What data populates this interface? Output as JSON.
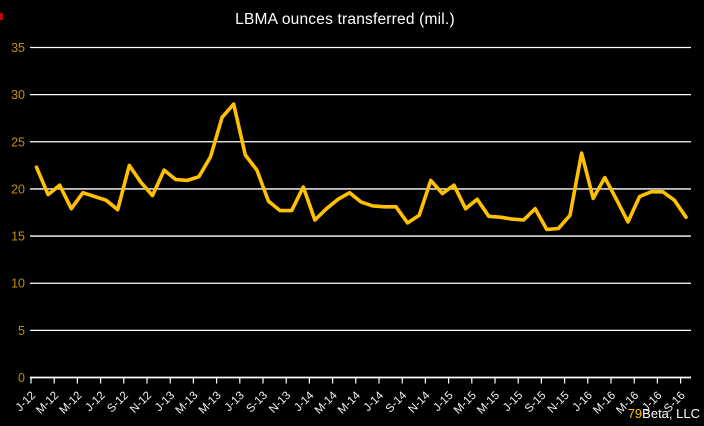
{
  "title": "LBMA ounces transferred (mil.)",
  "watermark": {
    "prefix": "79",
    "suffix": "Beta, LLC"
  },
  "colors": {
    "background": "#000000",
    "line": "#FFC000",
    "grid": "#FFFFFF",
    "title": "#FFFFFF",
    "y_labels": "#BF9000",
    "x_labels": "#F2F2F2",
    "watermark_prefix": "#FFC000",
    "watermark_suffix": "#FFFFFF"
  },
  "chart_data": {
    "type": "line",
    "title": "LBMA ounces transferred (mil.)",
    "xlabel": "",
    "ylabel": "",
    "ylim": [
      0,
      35
    ],
    "y_ticks": [
      0,
      5,
      10,
      15,
      20,
      25,
      30,
      35
    ],
    "grid": "horizontal",
    "legend": "none",
    "x": [
      "Jan-12",
      "Feb-12",
      "Mar-12",
      "Apr-12",
      "May-12",
      "Jun-12",
      "Jul-12",
      "Aug-12",
      "Sep-12",
      "Oct-12",
      "Nov-12",
      "Dec-12",
      "Jan-13",
      "Feb-13",
      "Mar-13",
      "Apr-13",
      "May-13",
      "Jun-13",
      "Jul-13",
      "Aug-13",
      "Sep-13",
      "Oct-13",
      "Nov-13",
      "Dec-13",
      "Jan-14",
      "Feb-14",
      "Mar-14",
      "Apr-14",
      "May-14",
      "Jun-14",
      "Jul-14",
      "Aug-14",
      "Sep-14",
      "Oct-14",
      "Nov-14",
      "Dec-14",
      "Jan-15",
      "Feb-15",
      "Mar-15",
      "Apr-15",
      "May-15",
      "Jun-15",
      "Jul-15",
      "Aug-15",
      "Sep-15",
      "Oct-15",
      "Nov-15",
      "Dec-15",
      "Jan-16",
      "Feb-16",
      "Mar-16",
      "Apr-16",
      "May-16",
      "Jun-16",
      "Jul-16",
      "Aug-16",
      "Sep-16"
    ],
    "values": [
      22.3,
      19.4,
      20.4,
      17.9,
      19.6,
      19.2,
      18.8,
      17.8,
      22.5,
      20.7,
      19.3,
      22.0,
      21.0,
      20.9,
      21.3,
      23.4,
      27.6,
      29.0,
      23.6,
      22.0,
      18.7,
      17.7,
      17.7,
      20.2,
      16.7,
      17.9,
      18.9,
      19.6,
      18.6,
      18.2,
      18.1,
      18.1,
      16.4,
      17.2,
      20.9,
      19.5,
      20.4,
      17.9,
      18.9,
      17.1,
      17.0,
      16.8,
      16.7,
      17.9,
      15.7,
      15.8,
      17.2,
      23.8,
      19.0,
      21.2,
      18.9,
      16.5,
      19.2,
      19.7,
      19.7,
      18.8,
      17.0
    ],
    "x_tick_labels": [
      "J-12",
      "M-12",
      "M-12",
      "J-12",
      "S-12",
      "N-12",
      "J-13",
      "M-13",
      "M-13",
      "J-13",
      "S-13",
      "N-13",
      "J-14",
      "M-14",
      "M-14",
      "J-14",
      "S-14",
      "N-14",
      "J-15",
      "M-15",
      "M-15",
      "J-15",
      "S-15",
      "N-15",
      "J-16",
      "M-16",
      "M-16",
      "J-16",
      "S-16"
    ]
  }
}
